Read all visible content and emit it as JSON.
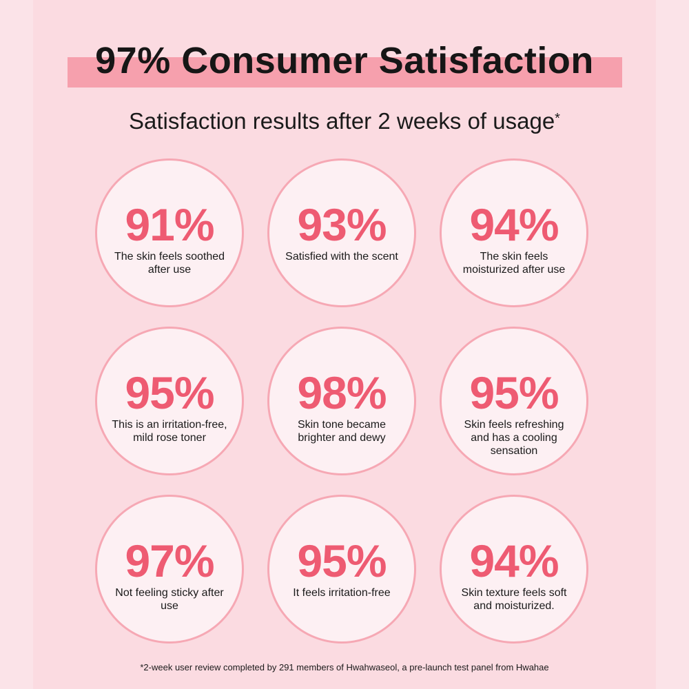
{
  "header": {
    "title": "97% Consumer Satisfaction",
    "subtitle": "Satisfaction results after 2 weeks of usage",
    "subtitle_mark": "*"
  },
  "stats": [
    {
      "value": "91%",
      "label": "The skin feels soothed after use"
    },
    {
      "value": "93%",
      "label": "Satisfied with the scent"
    },
    {
      "value": "94%",
      "label": "The skin feels moisturized after use"
    },
    {
      "value": "95%",
      "label": "This is an irritation-free, mild rose toner"
    },
    {
      "value": "98%",
      "label": "Skin tone became brighter and dewy"
    },
    {
      "value": "95%",
      "label": "Skin feels refreshing and has a cooling sensation"
    },
    {
      "value": "97%",
      "label": "Not feeling sticky after use"
    },
    {
      "value": "95%",
      "label": "It feels irritation-free"
    },
    {
      "value": "94%",
      "label": "Skin texture feels soft and moisturized."
    }
  ],
  "footnote": "*2-week user review completed by 291 members of Hwahwaseol, a pre-launch test panel from Hwahae",
  "colors": {
    "background": "#fbdbe1",
    "title_highlight": "#f6a0ad",
    "percent_text": "#ee5b72",
    "circle_fill": "#fdf0f3",
    "circle_border": "#f6a8b4"
  }
}
